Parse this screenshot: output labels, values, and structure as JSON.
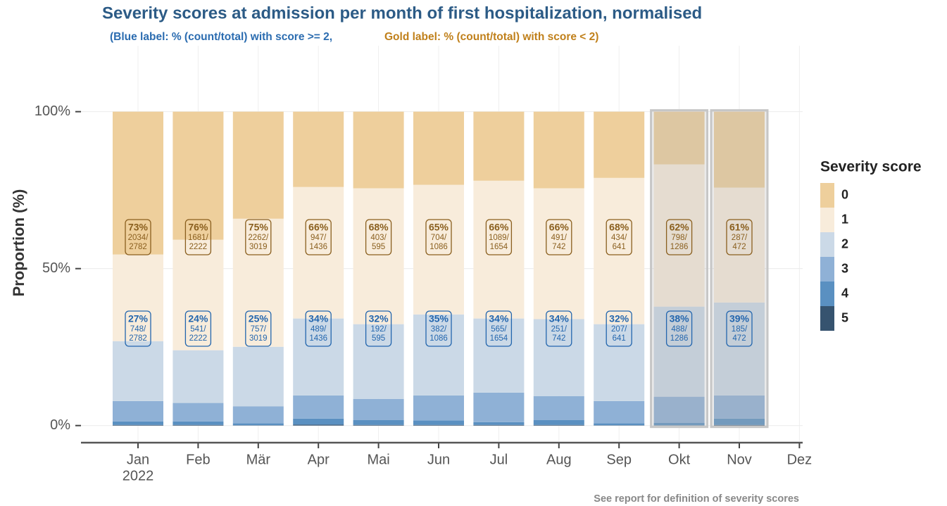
{
  "chart_data": {
    "type": "stacked_bar",
    "title": "Severity scores at admission per month of first hospitalization, normalised",
    "subtitle_blue": "(Blue label: % (count/total) with score >= 2,",
    "subtitle_gold": "Gold label: % (count/total) with score < 2)",
    "y_label": "Proportion (%)",
    "caption": "See report for definition of severity scores",
    "legend_title": "Severity score",
    "categories": [
      "Jan",
      "Feb",
      "Mär",
      "Apr",
      "Mai",
      "Jun",
      "Jul",
      "Aug",
      "Sep",
      "Okt",
      "Nov",
      "Dez"
    ],
    "year_label": "2022",
    "ylim": [
      -5,
      121
    ],
    "yticks": [
      {
        "value": 0,
        "label": "0%"
      },
      {
        "value": 50,
        "label": "50%"
      },
      {
        "value": 100,
        "label": "100%"
      }
    ],
    "grid": true,
    "incomplete": [
      false,
      false,
      false,
      false,
      false,
      false,
      false,
      false,
      false,
      true,
      true,
      false
    ],
    "series": [
      {
        "name": "0",
        "color": "#EECF9C",
        "values": [
          45.5,
          40.8,
          34.1,
          24.0,
          24.4,
          23.3,
          22.0,
          24.4,
          21.1,
          16.8,
          24.2,
          null
        ]
      },
      {
        "name": "1",
        "color": "#F8ECDB",
        "values": [
          27.6,
          35.2,
          40.8,
          41.9,
          43.3,
          41.3,
          43.9,
          41.7,
          46.6,
          45.3,
          36.6,
          null
        ]
      },
      {
        "name": "2",
        "color": "#CBD9E7",
        "values": [
          19.1,
          16.8,
          19.0,
          24.5,
          23.8,
          25.8,
          23.6,
          24.5,
          24.5,
          28.7,
          29.6,
          null
        ]
      },
      {
        "name": "3",
        "color": "#8FB1D6",
        "values": [
          6.5,
          5.9,
          5.4,
          7.4,
          6.7,
          8.0,
          9.4,
          7.6,
          7.1,
          8.3,
          7.4,
          null
        ]
      },
      {
        "name": "4",
        "color": "#5A90C1",
        "values": [
          1.1,
          1.1,
          0.6,
          1.9,
          1.6,
          1.4,
          0.9,
          1.6,
          0.6,
          0.8,
          2.0,
          null
        ]
      },
      {
        "name": "5",
        "color": "#36536F",
        "values": [
          0.2,
          0.2,
          0.1,
          0.3,
          0.2,
          0.2,
          0.2,
          0.2,
          0.1,
          0.1,
          0.2,
          null
        ]
      }
    ],
    "gold_labels": [
      {
        "value": 73,
        "label": "73%",
        "count_label": "2034/",
        "total": 2782
      },
      {
        "value": 76,
        "label": "76%",
        "count_label": "1681/",
        "total": 2222
      },
      {
        "value": 75,
        "label": "75%",
        "count_label": "2262/",
        "total": 3019
      },
      {
        "value": 66,
        "label": "66%",
        "count_label": "947/",
        "total": 1436
      },
      {
        "value": 68,
        "label": "68%",
        "count_label": "403/",
        "total": 595
      },
      {
        "value": 65,
        "label": "65%",
        "count_label": "704/",
        "total": 1086
      },
      {
        "value": 66,
        "label": "66%",
        "count_label": "1089/",
        "total": 1654
      },
      {
        "value": 66,
        "label": "66%",
        "count_label": "491/",
        "total": 742
      },
      {
        "value": 68,
        "label": "68%",
        "count_label": "434/",
        "total": 641
      },
      {
        "value": 62,
        "label": "62%",
        "count_label": "798/",
        "total": 1286
      },
      {
        "value": 61,
        "label": "61%",
        "count_label": "287/",
        "total": 472
      },
      null
    ],
    "blue_labels": [
      {
        "value": 27,
        "label": "27%",
        "count_label": "748/",
        "total": 2782
      },
      {
        "value": 24,
        "label": "24%",
        "count_label": "541/",
        "total": 2222
      },
      {
        "value": 25,
        "label": "25%",
        "count_label": "757/",
        "total": 3019
      },
      {
        "value": 34,
        "label": "34%",
        "count_label": "489/",
        "total": 1436
      },
      {
        "value": 32,
        "label": "32%",
        "count_label": "192/",
        "total": 595
      },
      {
        "value": 35,
        "label": "35%",
        "count_label": "382/",
        "total": 1086
      },
      {
        "value": 34,
        "label": "34%",
        "count_label": "565/",
        "total": 1654
      },
      {
        "value": 34,
        "label": "34%",
        "count_label": "251/",
        "total": 742
      },
      {
        "value": 32,
        "label": "32%",
        "count_label": "207/",
        "total": 641
      },
      {
        "value": 38,
        "label": "38%",
        "count_label": "488/",
        "total": 1286
      },
      {
        "value": 39,
        "label": "39%",
        "count_label": "185/",
        "total": 472
      },
      null
    ]
  }
}
